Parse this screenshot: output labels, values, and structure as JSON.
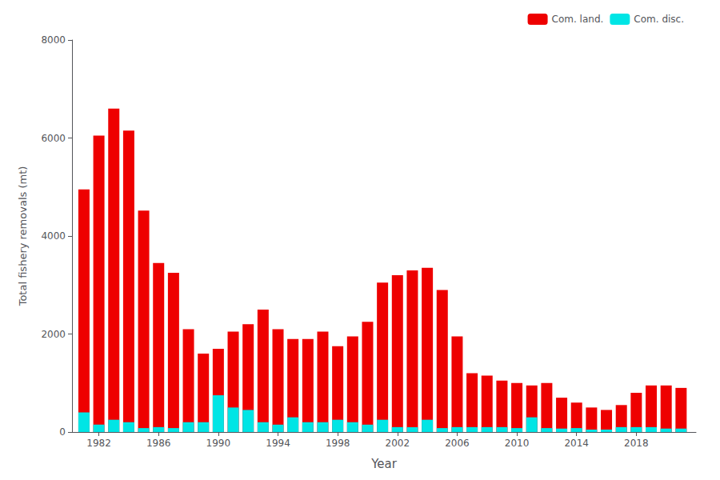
{
  "chart_data": {
    "type": "bar",
    "stacked": true,
    "xlabel": "Year",
    "ylabel": "Total fishery removals (mt)",
    "x": [
      1981,
      1982,
      1983,
      1984,
      1985,
      1986,
      1987,
      1988,
      1989,
      1990,
      1991,
      1992,
      1993,
      1994,
      1995,
      1996,
      1997,
      1998,
      1999,
      2000,
      2001,
      2002,
      2003,
      2004,
      2005,
      2006,
      2007,
      2008,
      2009,
      2010,
      2011,
      2012,
      2013,
      2014,
      2015,
      2016,
      2017,
      2018,
      2019,
      2020,
      2021
    ],
    "series": [
      {
        "name": "Com. land.",
        "color": "#EE0000",
        "values": [
          4950,
          6050,
          6600,
          6150,
          4520,
          3450,
          3250,
          2100,
          1600,
          1700,
          2050,
          2200,
          2500,
          2100,
          1900,
          1900,
          2050,
          1750,
          1950,
          2250,
          3050,
          3200,
          3300,
          3350,
          2900,
          1950,
          1200,
          1150,
          1050,
          1000,
          950,
          1000,
          700,
          600,
          500,
          450,
          550,
          800,
          950,
          950,
          900
        ]
      },
      {
        "name": "Com. disc.",
        "color": "#00E5E5",
        "values": [
          400,
          150,
          250,
          200,
          80,
          100,
          80,
          200,
          200,
          750,
          500,
          450,
          200,
          150,
          300,
          200,
          200,
          250,
          200,
          150,
          250,
          100,
          100,
          250,
          80,
          100,
          100,
          100,
          100,
          80,
          300,
          80,
          70,
          80,
          50,
          50,
          100,
          100,
          100,
          70,
          70
        ]
      }
    ],
    "xlim": [
      1980.2,
      2022.0
    ],
    "xticks": [
      1982,
      1986,
      1990,
      1994,
      1998,
      2002,
      2006,
      2010,
      2014,
      2018
    ],
    "ylim": [
      0,
      8000
    ],
    "yticks": [
      0,
      2000,
      4000,
      6000,
      8000
    ],
    "grid": false,
    "legend": "upper right"
  }
}
